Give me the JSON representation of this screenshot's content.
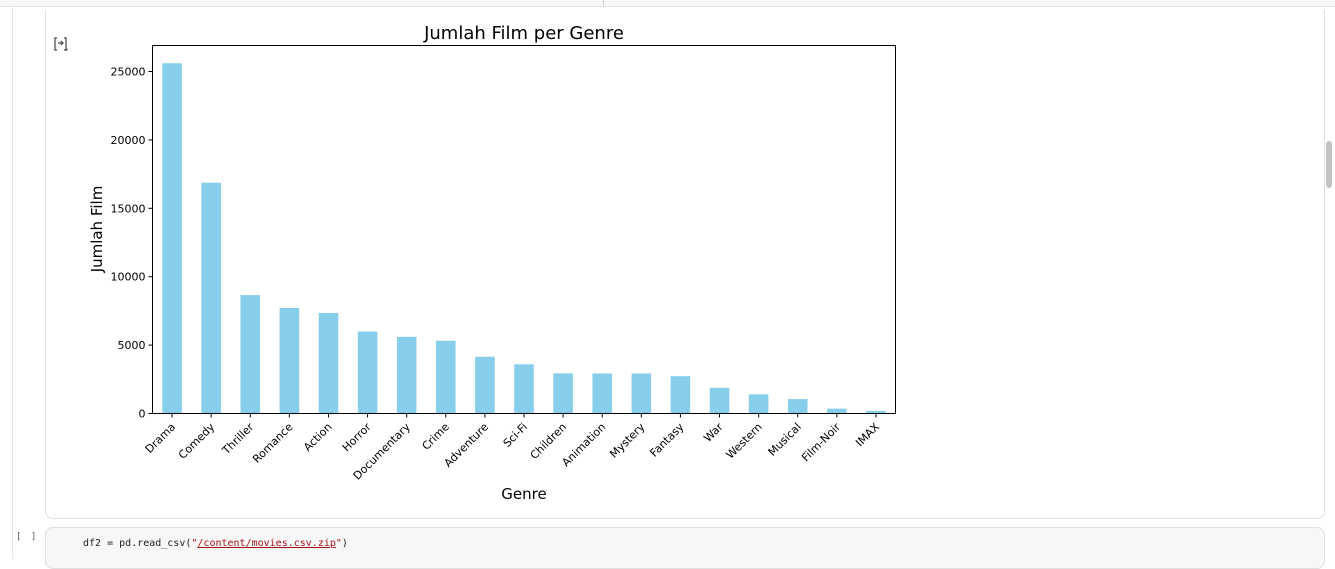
{
  "notebook": {
    "code_cell": {
      "exec_count": "[ ]",
      "code_prefix": "df2 = pd.read_csv(",
      "code_quote_open": "\"",
      "code_path": "/content/movies.csv.zip",
      "code_quote_close": "\"",
      "code_suffix": ")"
    },
    "output_icon": "output-toggle-icon"
  },
  "chart_data": {
    "type": "bar",
    "title": "Jumlah Film per Genre",
    "xlabel": "Genre",
    "ylabel": "Jumlah Film",
    "categories": [
      "Drama",
      "Comedy",
      "Thriller",
      "Romance",
      "Action",
      "Horror",
      "Documentary",
      "Crime",
      "Adventure",
      "Sci-Fi",
      "Children",
      "Animation",
      "Mystery",
      "Fantasy",
      "War",
      "Western",
      "Musical",
      "Film-Noir",
      "IMAX"
    ],
    "values": [
      25606,
      16870,
      8654,
      7719,
      7348,
      5989,
      5605,
      5319,
      4145,
      3595,
      2935,
      2929,
      2925,
      2731,
      1874,
      1399,
      1054,
      353,
      195
    ],
    "ylim": [
      0,
      26900
    ],
    "yticks": [
      0,
      5000,
      10000,
      15000,
      20000,
      25000
    ],
    "bar_color": "#87ceeb",
    "grid": false
  }
}
